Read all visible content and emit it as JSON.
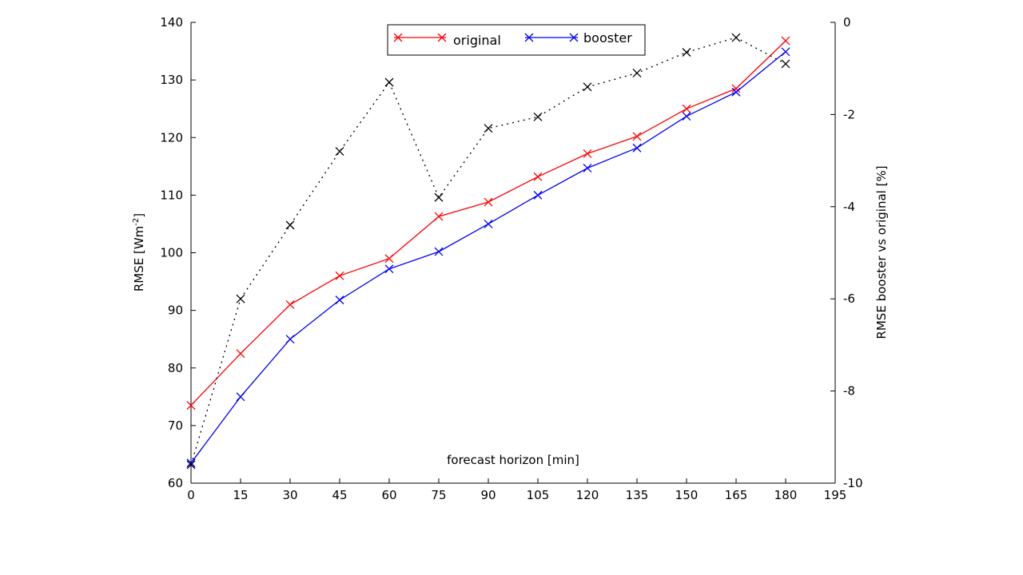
{
  "chart_data": {
    "type": "line",
    "title": "",
    "xlabel": "forecast horizon [min]",
    "ylabel": "RMSE [Wm",
    "ylabel_sup": "-2",
    "ylabel_close": "]",
    "y2label": "RMSE booster vs original [%]",
    "xlim": [
      0,
      195
    ],
    "ylim": [
      60,
      140
    ],
    "y2lim": [
      -10,
      0
    ],
    "x_ticks": [
      0,
      15,
      30,
      45,
      60,
      75,
      90,
      105,
      120,
      135,
      150,
      165,
      180,
      195
    ],
    "y_ticks": [
      60,
      70,
      80,
      90,
      100,
      110,
      120,
      130,
      140
    ],
    "y2_ticks": [
      -10,
      -8,
      -6,
      -4,
      -2,
      0
    ],
    "grid": false,
    "legend_position": "top-center",
    "x": [
      0,
      15,
      30,
      45,
      60,
      75,
      90,
      105,
      120,
      135,
      150,
      165,
      180
    ],
    "series": [
      {
        "name": "original",
        "color": "#ff0000",
        "marker": "x",
        "style": "solid",
        "axis": "left",
        "values": [
          73.5,
          82.5,
          91,
          96,
          99,
          106.3,
          108.8,
          113.2,
          117.2,
          120.2,
          125,
          128.5,
          136.8
        ]
      },
      {
        "name": "booster",
        "color": "#0000ff",
        "marker": "x",
        "style": "solid",
        "axis": "left",
        "values": [
          63.5,
          75,
          85,
          91.8,
          97.2,
          100.2,
          105,
          110,
          114.7,
          118.2,
          123.7,
          127.9,
          134.9
        ]
      },
      {
        "name": "",
        "color": "#000000",
        "marker": "x",
        "style": "dotted",
        "axis": "right",
        "values": [
          -9.6,
          -6.0,
          -4.4,
          -2.8,
          -1.3,
          -3.8,
          -2.3,
          -2.05,
          -1.4,
          -1.1,
          -0.65,
          -0.33,
          -0.9
        ]
      }
    ]
  }
}
